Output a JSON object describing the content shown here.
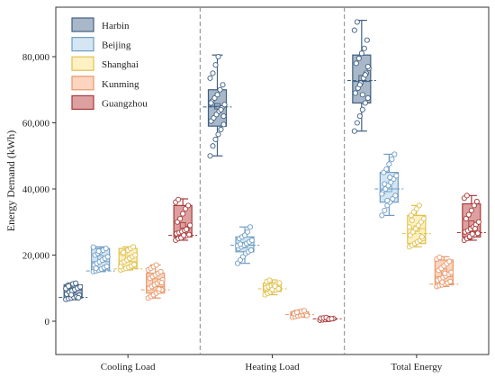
{
  "chart_data": {
    "type": "box",
    "categories": [
      "Cooling Load",
      "Heating Load",
      "Total Energy"
    ],
    "ylabel": "Energy Demand (kWh)",
    "ylim": [
      -8000,
      95000
    ],
    "yticks": [
      0,
      20000,
      40000,
      60000,
      80000
    ],
    "ytick_labels": [
      "0",
      "20,000",
      "40,000",
      "60,000",
      "80,000"
    ],
    "legend_placement": "top-left",
    "series": [
      {
        "name": "Harbin",
        "color": "#3f5f82",
        "fill": "#a9b8c9",
        "stats": [
          {
            "min": 6500,
            "q1": 7000,
            "median": 9500,
            "q3": 11000,
            "max": 11500,
            "mean": 9300,
            "mean_line": 7200
          },
          {
            "min": 50000,
            "q1": 59000,
            "median": 65000,
            "q3": 70000,
            "max": 80500,
            "mean": 65000,
            "mean_line": 64800
          },
          {
            "min": 57500,
            "q1": 66000,
            "median": 72500,
            "q3": 80500,
            "max": 91000,
            "mean": 73500,
            "mean_line": 72800
          }
        ],
        "points": [
          [
            6600,
            6800,
            7000,
            7200,
            7400,
            7800,
            8200,
            8800,
            9200,
            9600,
            10000,
            10400,
            10800,
            11000,
            11300,
            11500,
            7100,
            9900,
            10600,
            8000
          ],
          [
            50000,
            53000,
            55000,
            56500,
            58000,
            59500,
            60500,
            61500,
            62500,
            63500,
            64500,
            65500,
            66500,
            67500,
            68500,
            70000,
            71500,
            73500,
            75000,
            77500,
            80000,
            64000,
            62000,
            66000
          ],
          [
            57500,
            60000,
            62000,
            64000,
            66000,
            67500,
            69000,
            70500,
            72000,
            73500,
            75000,
            76500,
            78000,
            79500,
            81000,
            82500,
            85000,
            88000,
            90500,
            71500,
            68500,
            74500,
            77000
          ]
        ]
      },
      {
        "name": "Beijing",
        "color": "#6f9cc4",
        "fill": "#d4e6f3",
        "stats": [
          {
            "min": 15000,
            "q1": 15500,
            "median": 18000,
            "q3": 22000,
            "max": 22500,
            "mean": 19000,
            "mean_line": 15200
          },
          {
            "min": 17500,
            "q1": 21000,
            "median": 23000,
            "q3": 25500,
            "max": 28500,
            "mean": 23000,
            "mean_line": 23000
          },
          {
            "min": 32000,
            "q1": 36000,
            "median": 40000,
            "q3": 45000,
            "max": 50500,
            "mean": 40000,
            "mean_line": 40000
          }
        ],
        "points": [
          [
            15000,
            15200,
            15500,
            15800,
            16200,
            16600,
            17000,
            17500,
            18000,
            18500,
            19000,
            19500,
            20000,
            20500,
            21000,
            21500,
            22000,
            22400,
            16000,
            21200
          ],
          [
            17500,
            18500,
            19500,
            20500,
            21000,
            21500,
            22000,
            22500,
            23000,
            23500,
            24000,
            24500,
            25000,
            25500,
            26000,
            27000,
            28500,
            22800,
            23300
          ],
          [
            32000,
            33500,
            35000,
            36000,
            37000,
            38000,
            39000,
            40000,
            41000,
            42000,
            43000,
            44000,
            45000,
            46000,
            47500,
            49000,
            50500,
            38500,
            41500,
            36500,
            43500
          ]
        ]
      },
      {
        "name": "Shanghai",
        "color": "#e0c04e",
        "fill": "#fff1c3",
        "stats": [
          {
            "min": 15500,
            "q1": 16000,
            "median": 18000,
            "q3": 22000,
            "max": 22500,
            "mean": 19000,
            "mean_line": 15800
          },
          {
            "min": 8000,
            "q1": 9000,
            "median": 10000,
            "q3": 11500,
            "max": 12500,
            "mean": 10200,
            "mean_line": 9800
          },
          {
            "min": 22500,
            "q1": 23500,
            "median": 28000,
            "q3": 32000,
            "max": 35000,
            "mean": 28000,
            "mean_line": 26500
          }
        ],
        "points": [
          [
            15500,
            15800,
            16000,
            16300,
            16700,
            17100,
            17600,
            18000,
            18500,
            19000,
            19500,
            20000,
            20500,
            21000,
            21500,
            22000,
            22500,
            16500,
            20800
          ],
          [
            8000,
            8400,
            8800,
            9200,
            9500,
            9800,
            10100,
            10400,
            10700,
            11000,
            11300,
            11600,
            12000,
            12400,
            9600,
            10600
          ],
          [
            22500,
            23000,
            23500,
            24000,
            24500,
            25000,
            26000,
            27000,
            28000,
            29000,
            30000,
            31000,
            32000,
            33000,
            34000,
            35000,
            25500,
            28500,
            30500
          ]
        ]
      },
      {
        "name": "Kunming",
        "color": "#e8976a",
        "fill": "#fbd5bf",
        "stats": [
          {
            "min": 7000,
            "q1": 8500,
            "median": 10500,
            "q3": 14500,
            "max": 17000,
            "mean": 12000,
            "mean_line": 9500
          },
          {
            "min": 1200,
            "q1": 1600,
            "median": 2200,
            "q3": 2800,
            "max": 3300,
            "mean": 2200,
            "mean_line": 2000
          },
          {
            "min": 10500,
            "q1": 11000,
            "median": 13500,
            "q3": 18500,
            "max": 19500,
            "mean": 15000,
            "mean_line": 11200
          }
        ],
        "points": [
          [
            7000,
            7500,
            8000,
            8500,
            9000,
            9500,
            10000,
            10500,
            11000,
            11500,
            12000,
            12500,
            13000,
            13500,
            14000,
            14500,
            15000,
            15500,
            16000,
            16500,
            17000,
            9700,
            11700
          ],
          [
            1200,
            1400,
            1600,
            1800,
            2000,
            2200,
            2400,
            2600,
            2800,
            3000,
            3200,
            1700,
            2300,
            2700
          ],
          [
            10500,
            10800,
            11000,
            11300,
            11600,
            12000,
            12400,
            12800,
            13200,
            13700,
            14200,
            14800,
            15400,
            16000,
            16700,
            17400,
            18100,
            18800,
            19300,
            11800,
            14500
          ]
        ]
      },
      {
        "name": "Guangzhou",
        "color": "#a83a3a",
        "fill": "#dda0a0",
        "stats": [
          {
            "min": 24500,
            "q1": 25500,
            "median": 26500,
            "q3": 35000,
            "max": 37000,
            "mean": 29000,
            "mean_line": 26000
          },
          {
            "min": 300,
            "q1": 500,
            "median": 700,
            "q3": 900,
            "max": 1100,
            "mean": 700,
            "mean_line": 700
          },
          {
            "min": 24500,
            "q1": 25500,
            "median": 27000,
            "q3": 35500,
            "max": 38000,
            "mean": 29500,
            "mean_line": 26800
          }
        ],
        "points": [
          [
            24500,
            25000,
            25300,
            25600,
            25900,
            26200,
            26500,
            26800,
            27100,
            27500,
            28000,
            29000,
            30000,
            31000,
            32500,
            34000,
            35000,
            36000,
            36800,
            25200,
            26000,
            27800
          ],
          [
            300,
            400,
            500,
            600,
            700,
            800,
            900,
            1000,
            1100,
            650,
            750
          ],
          [
            24500,
            25000,
            25400,
            25800,
            26200,
            26600,
            27000,
            27400,
            27900,
            28500,
            29200,
            30000,
            31000,
            32200,
            33500,
            35000,
            36200,
            37200,
            38000,
            25600,
            26400,
            28000
          ]
        ]
      }
    ]
  }
}
